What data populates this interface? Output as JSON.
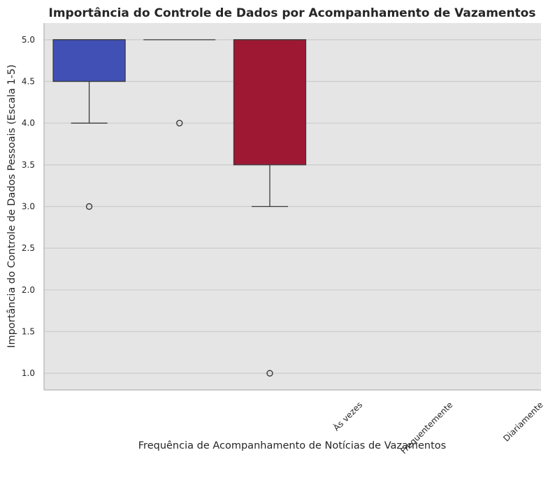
{
  "chart_data": {
    "type": "box",
    "title": "Importância do Controle de Dados por Acompanhamento de Vazamentos",
    "xlabel": "Frequência de Acompanhamento de Notícias de Vazamentos",
    "ylabel": "Importância do Controle de Dados Pessoais (Escala 1-5)",
    "ylim": [
      0.8,
      5.2
    ],
    "yticks": [
      "1.0",
      "1.5",
      "2.0",
      "2.5",
      "3.0",
      "3.5",
      "4.0",
      "4.5",
      "5.0"
    ],
    "categories": [
      "Às vezes",
      "Frequentemente",
      "Diariamente"
    ],
    "boxes": [
      {
        "q1": 4.5,
        "median": 5.0,
        "q3": 5.0,
        "whisker_low": 4.0,
        "whisker_high": 5.0,
        "outliers": [
          3.0
        ],
        "color": "#4050b5"
      },
      {
        "q1": 5.0,
        "median": 5.0,
        "q3": 5.0,
        "whisker_low": 5.0,
        "whisker_high": 5.0,
        "outliers": [
          4.0
        ],
        "color": "#4050b5"
      },
      {
        "q1": 3.5,
        "median": 5.0,
        "q3": 5.0,
        "whisker_low": 3.0,
        "whisker_high": 5.0,
        "outliers": [
          1.0
        ],
        "color": "#9e1834"
      }
    ],
    "grid": true,
    "background": "#e5e5e5",
    "grid_color": "#cccccc"
  }
}
